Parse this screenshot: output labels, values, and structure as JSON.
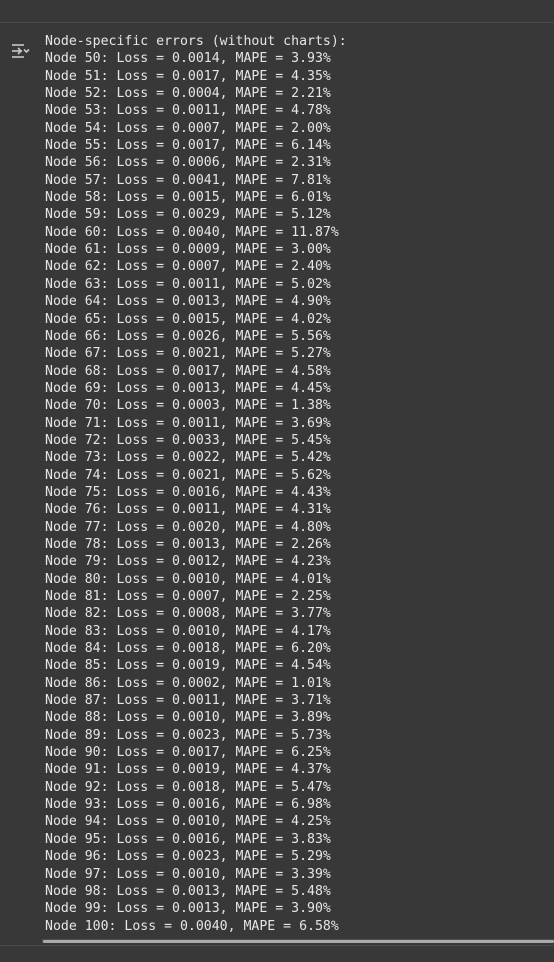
{
  "output": {
    "header": "Node-specific errors (without charts):",
    "lines": [
      "Node 50: Loss = 0.0014, MAPE = 3.93%",
      "Node 51: Loss = 0.0017, MAPE = 4.35%",
      "Node 52: Loss = 0.0004, MAPE = 2.21%",
      "Node 53: Loss = 0.0011, MAPE = 4.78%",
      "Node 54: Loss = 0.0007, MAPE = 2.00%",
      "Node 55: Loss = 0.0017, MAPE = 6.14%",
      "Node 56: Loss = 0.0006, MAPE = 2.31%",
      "Node 57: Loss = 0.0041, MAPE = 7.81%",
      "Node 58: Loss = 0.0015, MAPE = 6.01%",
      "Node 59: Loss = 0.0029, MAPE = 5.12%",
      "Node 60: Loss = 0.0040, MAPE = 11.87%",
      "Node 61: Loss = 0.0009, MAPE = 3.00%",
      "Node 62: Loss = 0.0007, MAPE = 2.40%",
      "Node 63: Loss = 0.0011, MAPE = 5.02%",
      "Node 64: Loss = 0.0013, MAPE = 4.90%",
      "Node 65: Loss = 0.0015, MAPE = 4.02%",
      "Node 66: Loss = 0.0026, MAPE = 5.56%",
      "Node 67: Loss = 0.0021, MAPE = 5.27%",
      "Node 68: Loss = 0.0017, MAPE = 4.58%",
      "Node 69: Loss = 0.0013, MAPE = 4.45%",
      "Node 70: Loss = 0.0003, MAPE = 1.38%",
      "Node 71: Loss = 0.0011, MAPE = 3.69%",
      "Node 72: Loss = 0.0033, MAPE = 5.45%",
      "Node 73: Loss = 0.0022, MAPE = 5.42%",
      "Node 74: Loss = 0.0021, MAPE = 5.62%",
      "Node 75: Loss = 0.0016, MAPE = 4.43%",
      "Node 76: Loss = 0.0011, MAPE = 4.31%",
      "Node 77: Loss = 0.0020, MAPE = 4.80%",
      "Node 78: Loss = 0.0013, MAPE = 2.26%",
      "Node 79: Loss = 0.0012, MAPE = 4.23%",
      "Node 80: Loss = 0.0010, MAPE = 4.01%",
      "Node 81: Loss = 0.0007, MAPE = 2.25%",
      "Node 82: Loss = 0.0008, MAPE = 3.77%",
      "Node 83: Loss = 0.0010, MAPE = 4.17%",
      "Node 84: Loss = 0.0018, MAPE = 6.20%",
      "Node 85: Loss = 0.0019, MAPE = 4.54%",
      "Node 86: Loss = 0.0002, MAPE = 1.01%",
      "Node 87: Loss = 0.0011, MAPE = 3.71%",
      "Node 88: Loss = 0.0010, MAPE = 3.89%",
      "Node 89: Loss = 0.0023, MAPE = 5.73%",
      "Node 90: Loss = 0.0017, MAPE = 6.25%",
      "Node 91: Loss = 0.0019, MAPE = 4.37%",
      "Node 92: Loss = 0.0018, MAPE = 5.47%",
      "Node 93: Loss = 0.0016, MAPE = 6.98%",
      "Node 94: Loss = 0.0010, MAPE = 4.25%",
      "Node 95: Loss = 0.0016, MAPE = 3.83%",
      "Node 96: Loss = 0.0023, MAPE = 5.29%",
      "Node 97: Loss = 0.0010, MAPE = 3.39%",
      "Node 98: Loss = 0.0013, MAPE = 5.48%",
      "Node 99: Loss = 0.0013, MAPE = 3.90%",
      "Node 100: Loss = 0.0040, MAPE = 6.58%"
    ]
  },
  "icons": {
    "output_toggle": "output-settings-icon"
  },
  "colors": {
    "background": "#383838",
    "text": "#e6e6e6",
    "icon": "#c8c8c8",
    "scrollbar_thumb": "#a9a9a9"
  }
}
